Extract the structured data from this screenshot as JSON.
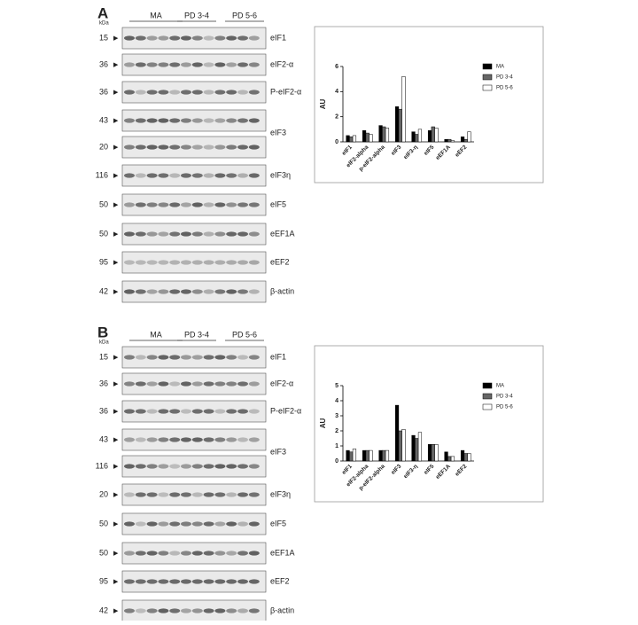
{
  "panels": [
    {
      "label": "A",
      "kda_label": "kDa",
      "groups": [
        "MA",
        "PD 3-4",
        "PD 5-6"
      ],
      "rows": [
        {
          "kda": "15",
          "protein": "eIF1"
        },
        {
          "kda": "36",
          "protein": "eIF2-α"
        },
        {
          "kda": "36",
          "protein": "P-eIF2-α"
        },
        {
          "kda": "43",
          "protein": "eIF3"
        },
        {
          "kda": "20"
        },
        {
          "kda": "116",
          "protein": "eIF3η"
        },
        {
          "kda": "50",
          "protein": "eIF5"
        },
        {
          "kda": "50",
          "protein": "eEF1A"
        },
        {
          "kda": "95",
          "protein": "eEF2"
        },
        {
          "kda": "42",
          "protein": "β-actin"
        }
      ]
    },
    {
      "label": "B",
      "kda_label": "kDa",
      "groups": [
        "MA",
        "PD 3-4",
        "PD 5-6"
      ],
      "rows": [
        {
          "kda": "15",
          "protein": "eIF1"
        },
        {
          "kda": "36",
          "protein": "eIF2-α"
        },
        {
          "kda": "36",
          "protein": "P-eIF2-α"
        },
        {
          "kda": "43",
          "protein": "eIF3"
        },
        {
          "kda": "116"
        },
        {
          "kda": "20",
          "protein": "eIF3η"
        },
        {
          "kda": "50",
          "protein": "eIF5"
        },
        {
          "kda": "50",
          "protein": "eEF1A"
        },
        {
          "kda": "95",
          "protein": "eEF2"
        },
        {
          "kda": "42",
          "protein": "β-actin"
        }
      ]
    }
  ],
  "chart_data": [
    {
      "type": "bar",
      "y_label": "AU",
      "categories": [
        "eIF1",
        "eIF2-alpha",
        "p-eIF2-alpha",
        "eIF3",
        "eIF3-η",
        "eIF5",
        "eEF1A",
        "eEF2"
      ],
      "series": [
        {
          "name": "MA",
          "color": "#000000",
          "values": [
            0.5,
            0.9,
            1.3,
            2.8,
            0.8,
            0.9,
            0.2,
            0.4
          ]
        },
        {
          "name": "PD 3-4",
          "color": "#666666",
          "values": [
            0.4,
            0.7,
            1.2,
            2.6,
            0.6,
            1.2,
            0.2,
            0.2
          ]
        },
        {
          "name": "PD 5-6",
          "color": "#ffffff",
          "values": [
            0.5,
            0.6,
            1.1,
            5.2,
            1.0,
            1.1,
            0.1,
            0.8
          ]
        }
      ],
      "ylim": [
        0,
        6
      ],
      "yticks": [
        0,
        2,
        4,
        6
      ]
    },
    {
      "type": "bar",
      "y_label": "AU",
      "categories": [
        "eIF1",
        "eIF2-alpha",
        "p-eIF2-alpha",
        "eIF3",
        "eIF3-η",
        "eIF5",
        "eEF1A",
        "eEF2"
      ],
      "series": [
        {
          "name": "MA",
          "color": "#000000",
          "values": [
            0.7,
            0.7,
            0.7,
            3.7,
            1.7,
            1.1,
            0.6,
            0.7
          ]
        },
        {
          "name": "PD 3-4",
          "color": "#666666",
          "values": [
            0.6,
            0.7,
            0.7,
            2.0,
            1.5,
            1.1,
            0.3,
            0.5
          ]
        },
        {
          "name": "PD 5-6",
          "color": "#ffffff",
          "values": [
            0.8,
            0.7,
            0.7,
            2.1,
            1.9,
            1.1,
            0.3,
            0.5
          ]
        }
      ],
      "ylim": [
        0,
        5
      ],
      "yticks": [
        0,
        1,
        2,
        3,
        4,
        5
      ]
    }
  ]
}
